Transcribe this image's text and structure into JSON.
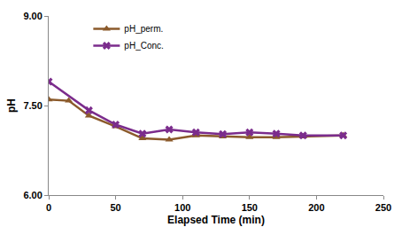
{
  "chart_data": {
    "type": "line",
    "x_label": "Elapsed Time (min)",
    "y_label": "pH",
    "series": [
      {
        "name": "pH_perm.",
        "color": "#8b5a2b",
        "marker": "triangle-up",
        "line_style": "solid",
        "x": [
          0,
          15,
          30,
          50,
          70,
          90,
          110,
          130,
          150,
          170,
          190,
          220
        ],
        "values": [
          7.6,
          7.58,
          7.33,
          7.15,
          6.95,
          6.93,
          7.0,
          6.98,
          6.97,
          6.97,
          6.98,
          7.0
        ]
      },
      {
        "name": "pH_Conc.",
        "color": "#7b2c8c",
        "marker": "x",
        "line_style": "solid",
        "x": [
          0,
          30,
          50,
          70,
          90,
          110,
          130,
          150,
          170,
          190,
          220
        ],
        "values": [
          7.9,
          7.42,
          7.18,
          7.03,
          7.1,
          7.05,
          7.02,
          7.05,
          7.03,
          7.0,
          7.0
        ]
      }
    ],
    "xlim": [
      0,
      250
    ],
    "xticks": [
      0,
      50,
      100,
      150,
      200,
      250
    ],
    "ylim": [
      6,
      9
    ],
    "yticks": [
      {
        "value": 6,
        "label": "6.00"
      },
      {
        "value": 7.5,
        "label": "7.50"
      },
      {
        "value": 9,
        "label": "9.00"
      }
    ],
    "grid": false,
    "legend": "upper left"
  }
}
